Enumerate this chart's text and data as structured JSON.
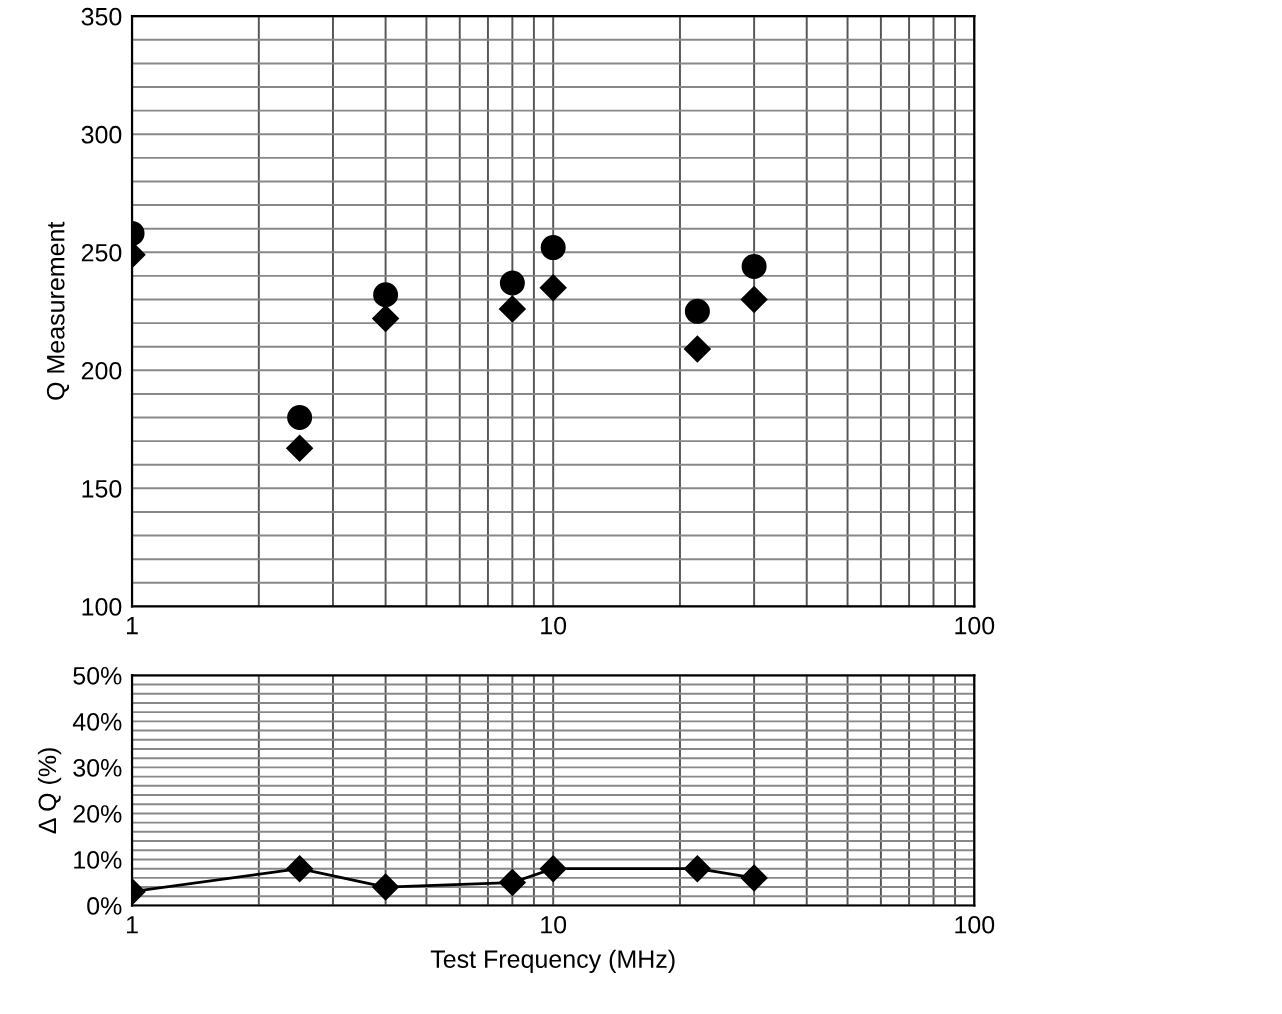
{
  "chart_data": [
    {
      "type": "scatter",
      "ylabel": "Q Measurement",
      "log": "x",
      "xlim": [
        1,
        100
      ],
      "xticks": [
        1,
        10,
        100
      ],
      "ylim": [
        100,
        350
      ],
      "yticks": [
        100,
        150,
        200,
        250,
        300,
        350
      ],
      "grid": true,
      "x": [
        1,
        2.5,
        4,
        8,
        10,
        22,
        30
      ],
      "series": [
        {
          "color": "#000000",
          "marker": "diamond",
          "values": [
            249,
            167,
            222,
            226,
            235,
            209,
            230
          ]
        },
        {
          "color": "#000000",
          "marker": "circle",
          "values": [
            258,
            180,
            232,
            237,
            252,
            225,
            244
          ]
        }
      ]
    },
    {
      "type": "line",
      "ylabel": "Δ Q (%)",
      "xlabel": "Test Frequency (MHz)",
      "log": "x",
      "xlim": [
        1,
        100
      ],
      "xticks": [
        1,
        10,
        100
      ],
      "ylim": [
        0,
        50
      ],
      "yticks": [
        {
          "value": 0,
          "label": "0%"
        },
        {
          "value": 10,
          "label": "10%"
        },
        {
          "value": 20,
          "label": "20%"
        },
        {
          "value": 30,
          "label": "30%"
        },
        {
          "value": 40,
          "label": "40%"
        },
        {
          "value": 50,
          "label": "50%"
        }
      ],
      "grid": true,
      "x": [
        1,
        2.5,
        4,
        8,
        10,
        22,
        30
      ],
      "marker": "diamond",
      "line_style": "solid",
      "series": [
        {
          "color": "#000000",
          "values": [
            3,
            8,
            4,
            5,
            8,
            8,
            6
          ]
        }
      ]
    }
  ]
}
